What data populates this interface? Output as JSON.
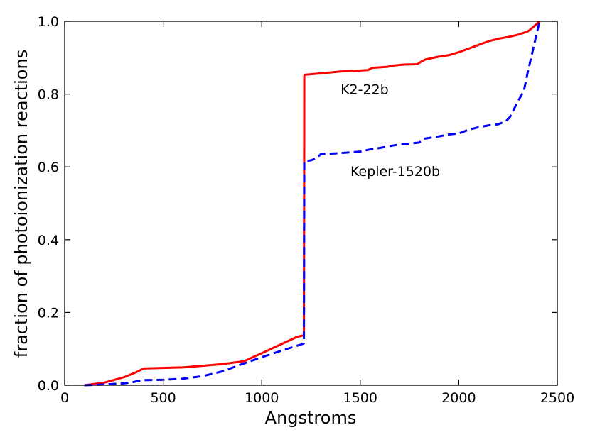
{
  "chart_data": {
    "type": "line",
    "title": "",
    "xlabel": "Angstroms",
    "ylabel": "fraction of photoionization reactions",
    "xlim": [
      0,
      2500
    ],
    "ylim": [
      0.0,
      1.0
    ],
    "xticks": [
      0,
      500,
      1000,
      1500,
      2000,
      2500
    ],
    "yticks": [
      0.0,
      0.2,
      0.4,
      0.6,
      0.8,
      1.0
    ],
    "xtick_labels": [
      "0",
      "500",
      "1000",
      "1500",
      "2000",
      "2500"
    ],
    "ytick_labels": [
      "0.0",
      "0.2",
      "0.4",
      "0.6",
      "0.8",
      "1.0"
    ],
    "grid": false,
    "legend": "none",
    "series": [
      {
        "name": "K2-22b",
        "color": "#ff0000",
        "style": "solid",
        "x": [
          100,
          200,
          300,
          360,
          400,
          600,
          800,
          910,
          1000,
          1100,
          1180,
          1212,
          1214,
          1216,
          1218,
          1300,
          1400,
          1540,
          1560,
          1640,
          1660,
          1720,
          1790,
          1800,
          1830,
          1900,
          1950,
          2000,
          2050,
          2100,
          2150,
          2200,
          2260,
          2300,
          2350,
          2380,
          2410
        ],
        "y": [
          0.0,
          0.007,
          0.022,
          0.035,
          0.046,
          0.049,
          0.058,
          0.066,
          0.088,
          0.113,
          0.133,
          0.137,
          0.137,
          0.85,
          0.853,
          0.857,
          0.862,
          0.866,
          0.872,
          0.875,
          0.878,
          0.881,
          0.882,
          0.886,
          0.895,
          0.903,
          0.907,
          0.915,
          0.925,
          0.935,
          0.945,
          0.952,
          0.958,
          0.963,
          0.972,
          0.985,
          1.0
        ]
      },
      {
        "name": "Kepler-1520b",
        "color": "#0000ff",
        "style": "dashed",
        "x": [
          100,
          200,
          300,
          350,
          400,
          500,
          600,
          700,
          800,
          900,
          1000,
          1100,
          1200,
          1214,
          1216,
          1220,
          1250,
          1280,
          1300,
          1400,
          1500,
          1550,
          1600,
          1650,
          1700,
          1750,
          1800,
          1820,
          1900,
          1950,
          2000,
          2050,
          2100,
          2150,
          2200,
          2240,
          2260,
          2300,
          2330,
          2350,
          2380,
          2410
        ],
        "y": [
          0.0,
          0.002,
          0.005,
          0.009,
          0.014,
          0.015,
          0.018,
          0.025,
          0.038,
          0.058,
          0.077,
          0.095,
          0.112,
          0.115,
          0.615,
          0.616,
          0.618,
          0.625,
          0.635,
          0.638,
          0.642,
          0.648,
          0.652,
          0.657,
          0.662,
          0.664,
          0.667,
          0.677,
          0.684,
          0.689,
          0.692,
          0.702,
          0.709,
          0.714,
          0.717,
          0.726,
          0.737,
          0.78,
          0.808,
          0.86,
          0.93,
          1.0
        ]
      }
    ],
    "annotations": [
      {
        "text": "K2-22b",
        "x": 1400,
        "y": 0.8
      },
      {
        "text": "Kepler-1520b",
        "x": 1450,
        "y": 0.575
      }
    ]
  }
}
